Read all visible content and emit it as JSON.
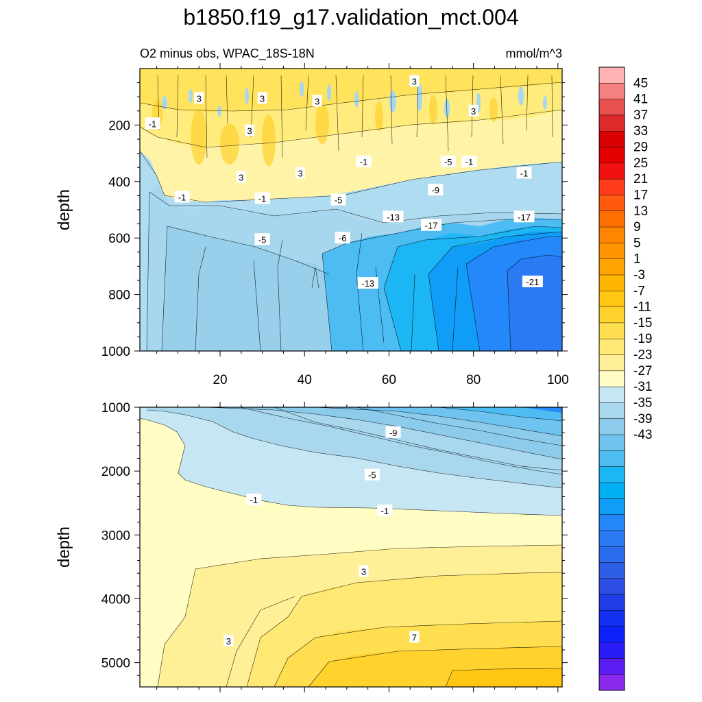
{
  "title": "b1850.f19_g17.validation_mct.004",
  "subtitle_left": "O2 minus obs, WPAC_18S-18N",
  "units": "mmol/m^3",
  "chart_data": [
    {
      "type": "heatmap",
      "panel": "upper",
      "ylabel": "depth",
      "xlim": [
        1,
        101
      ],
      "ylim": [
        1000,
        0
      ],
      "x_ticks": [
        20,
        40,
        60,
        80,
        100
      ],
      "y_ticks": [
        200,
        400,
        600,
        800,
        1000
      ],
      "contour_labels": [
        {
          "text": "3",
          "x": 15,
          "y": 105
        },
        {
          "text": "3",
          "x": 30,
          "y": 105
        },
        {
          "text": "3",
          "x": 43,
          "y": 115
        },
        {
          "text": "3",
          "x": 66,
          "y": 45
        },
        {
          "text": "3",
          "x": 80,
          "y": 150
        },
        {
          "text": "-1",
          "x": 4,
          "y": 195
        },
        {
          "text": "3",
          "x": 27,
          "y": 220
        },
        {
          "text": "3",
          "x": 25,
          "y": 385
        },
        {
          "text": "3",
          "x": 39,
          "y": 370
        },
        {
          "text": "-1",
          "x": 54,
          "y": 330
        },
        {
          "text": "-5",
          "x": 74,
          "y": 330
        },
        {
          "text": "-1",
          "x": 79,
          "y": 330
        },
        {
          "text": "-1",
          "x": 92,
          "y": 370
        },
        {
          "text": "-1",
          "x": 11,
          "y": 455
        },
        {
          "text": "-1",
          "x": 30,
          "y": 460
        },
        {
          "text": "-5",
          "x": 48,
          "y": 465
        },
        {
          "text": "-9",
          "x": 71,
          "y": 430
        },
        {
          "text": "-13",
          "x": 61,
          "y": 525
        },
        {
          "text": "-17",
          "x": 70,
          "y": 555
        },
        {
          "text": "-17",
          "x": 92,
          "y": 525
        },
        {
          "text": "-5",
          "x": 30,
          "y": 605
        },
        {
          "text": "-6",
          "x": 49,
          "y": 600
        },
        {
          "text": "-13",
          "x": 55,
          "y": 760
        },
        {
          "text": "-21",
          "x": 94,
          "y": 755
        }
      ]
    },
    {
      "type": "heatmap",
      "panel": "lower",
      "ylabel": "depth",
      "xlim": [
        1,
        101
      ],
      "ylim": [
        5380,
        1000
      ],
      "y_ticks": [
        1000,
        2000,
        3000,
        4000,
        5000
      ],
      "contour_labels": [
        {
          "text": "-9",
          "x": 61,
          "y": 1395
        },
        {
          "text": "-5",
          "x": 56,
          "y": 2060
        },
        {
          "text": "-1",
          "x": 28,
          "y": 2450
        },
        {
          "text": "-1",
          "x": 59,
          "y": 2620
        },
        {
          "text": "3",
          "x": 54,
          "y": 3570
        },
        {
          "text": "3",
          "x": 22,
          "y": 4660
        },
        {
          "text": "7",
          "x": 66,
          "y": 4600
        }
      ]
    }
  ],
  "colorbar": {
    "labels": [
      "45",
      "41",
      "37",
      "33",
      "29",
      "25",
      "21",
      "17",
      "13",
      "9",
      "5",
      "1",
      "-3",
      "-7",
      "-11",
      "-15",
      "-19",
      "-23",
      "-27",
      "-31",
      "-35",
      "-39",
      "-43"
    ],
    "colors": [
      "#FFB3B3",
      "#F48080",
      "#E85050",
      "#DD2A2A",
      "#D80000",
      "#E40000",
      "#F21111",
      "#FF3B1A",
      "#FF5A0D",
      "#FF6F00",
      "#FF8500",
      "#FF9400",
      "#FFA300",
      "#FFB600",
      "#FFC614",
      "#FFD22E",
      "#FFDE4F",
      "#FFE873",
      "#FFF098",
      "#FFFCC4",
      "#C6E6F3",
      "#A8D7EE",
      "#8CCBEC",
      "#6EC3EF",
      "#4CBCF3",
      "#1DB6F5",
      "#00B0F5",
      "#109DF8",
      "#2488FA",
      "#2A7AF4",
      "#2B6DEE",
      "#2E5EE6",
      "#2D4EE2",
      "#1E3DE8",
      "#1330F2",
      "#0D22FB",
      "#2A1CF6",
      "#5A1CF0",
      "#8A2AEC"
    ]
  }
}
